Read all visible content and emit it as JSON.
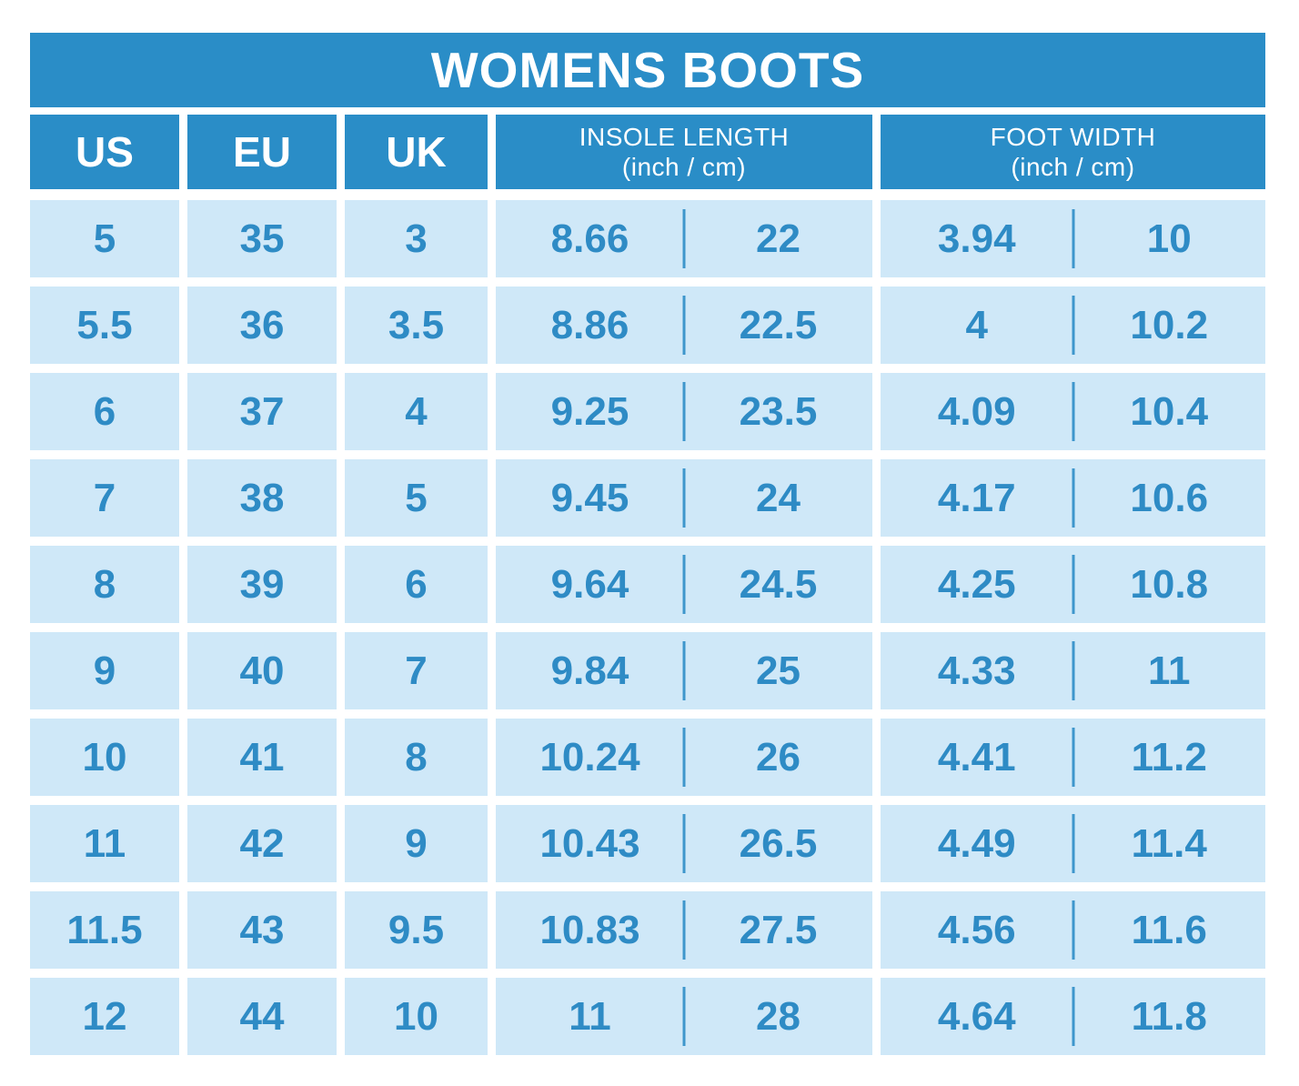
{
  "title": "WOMENS BOOTS",
  "columns": {
    "us": "US",
    "eu": "EU",
    "uk": "UK",
    "insole_line1": "INSOLE LENGTH",
    "insole_line2": "(inch / cm)",
    "foot_line1": "FOOT WIDTH",
    "foot_line2": "(inch / cm)"
  },
  "rows": [
    {
      "us": "5",
      "eu": "35",
      "uk": "3",
      "insole_in": "8.66",
      "insole_cm": "22",
      "width_in": "3.94",
      "width_cm": "10"
    },
    {
      "us": "5.5",
      "eu": "36",
      "uk": "3.5",
      "insole_in": "8.86",
      "insole_cm": "22.5",
      "width_in": "4",
      "width_cm": "10.2"
    },
    {
      "us": "6",
      "eu": "37",
      "uk": "4",
      "insole_in": "9.25",
      "insole_cm": "23.5",
      "width_in": "4.09",
      "width_cm": "10.4"
    },
    {
      "us": "7",
      "eu": "38",
      "uk": "5",
      "insole_in": "9.45",
      "insole_cm": "24",
      "width_in": "4.17",
      "width_cm": "10.6"
    },
    {
      "us": "8",
      "eu": "39",
      "uk": "6",
      "insole_in": "9.64",
      "insole_cm": "24.5",
      "width_in": "4.25",
      "width_cm": "10.8"
    },
    {
      "us": "9",
      "eu": "40",
      "uk": "7",
      "insole_in": "9.84",
      "insole_cm": "25",
      "width_in": "4.33",
      "width_cm": "11"
    },
    {
      "us": "10",
      "eu": "41",
      "uk": "8",
      "insole_in": "10.24",
      "insole_cm": "26",
      "width_in": "4.41",
      "width_cm": "11.2"
    },
    {
      "us": "11",
      "eu": "42",
      "uk": "9",
      "insole_in": "10.43",
      "insole_cm": "26.5",
      "width_in": "4.49",
      "width_cm": "11.4"
    },
    {
      "us": "11.5",
      "eu": "43",
      "uk": "9.5",
      "insole_in": "10.83",
      "insole_cm": "27.5",
      "width_in": "4.56",
      "width_cm": "11.6"
    },
    {
      "us": "12",
      "eu": "44",
      "uk": "10",
      "insole_in": "11",
      "insole_cm": "28",
      "width_in": "4.64",
      "width_cm": "11.8"
    }
  ],
  "colors": {
    "header_blue": "#2a8dc7",
    "cell_light_blue": "#cfe8f8",
    "value_text_blue": "#2e8bc5",
    "divider_blue": "#3e96cc",
    "background": "#ffffff",
    "header_text": "#ffffff"
  },
  "chart_data": {
    "type": "table",
    "title": "WOMENS BOOTS",
    "columns": [
      "US",
      "EU",
      "UK",
      "INSOLE LENGTH (inch)",
      "INSOLE LENGTH (cm)",
      "FOOT WIDTH (inch)",
      "FOOT WIDTH (cm)"
    ],
    "rows": [
      [
        5,
        35,
        3,
        8.66,
        22,
        3.94,
        10
      ],
      [
        5.5,
        36,
        3.5,
        8.86,
        22.5,
        4,
        10.2
      ],
      [
        6,
        37,
        4,
        9.25,
        23.5,
        4.09,
        10.4
      ],
      [
        7,
        38,
        5,
        9.45,
        24,
        4.17,
        10.6
      ],
      [
        8,
        39,
        6,
        9.64,
        24.5,
        4.25,
        10.8
      ],
      [
        9,
        40,
        7,
        9.84,
        25,
        4.33,
        11
      ],
      [
        10,
        41,
        8,
        10.24,
        26,
        4.41,
        11.2
      ],
      [
        11,
        42,
        9,
        10.43,
        26.5,
        4.49,
        11.4
      ],
      [
        11.5,
        43,
        9.5,
        10.83,
        27.5,
        4.56,
        11.6
      ],
      [
        12,
        44,
        10,
        11,
        28,
        4.64,
        11.8
      ]
    ]
  }
}
